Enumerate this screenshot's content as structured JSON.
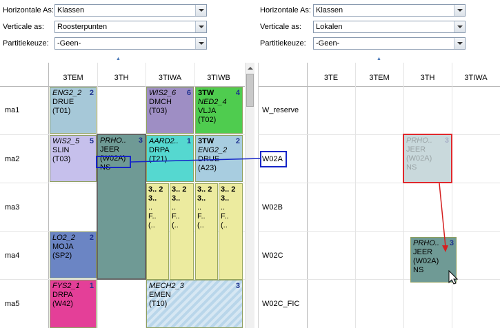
{
  "left_form": {
    "horizontal_label": "Horizontale As:",
    "horizontal_value": "Klassen",
    "vertical_label": "Verticale as:",
    "vertical_value": "Roosterpunten",
    "partition_label": "Partitiekeuze:",
    "partition_value": "-Geen-"
  },
  "right_form": {
    "horizontal_label": "Horizontale As:",
    "horizontal_value": "Klassen",
    "vertical_label": "Verticale as:",
    "vertical_value": "Lokalen",
    "partition_label": "Partitiekeuze:",
    "partition_value": "-Geen-"
  },
  "left_grid": {
    "columns": [
      "3TEM",
      "3TH",
      "3TIWA",
      "3TIWB"
    ],
    "rows": [
      "ma1",
      "ma2",
      "ma3",
      "ma4",
      "ma5"
    ]
  },
  "right_grid": {
    "columns": [
      "3TE",
      "3TEM",
      "3TH",
      "3TIWA"
    ],
    "rooms": [
      "W_reserve",
      "W02A",
      "W02B",
      "W02C",
      "W02C_FIC"
    ]
  },
  "cards": {
    "eng": {
      "subject": "ENG2_2",
      "count": "2",
      "teacher": "DRUE",
      "room": "(T01)"
    },
    "wis6": {
      "subject": "WIS2_6",
      "count": "6",
      "teacher": "DMCH",
      "room": "(T03)"
    },
    "tw": {
      "group": "3TW",
      "count": "4",
      "subject": "NED2_4",
      "teacher": "VLJA",
      "room": "(T02)"
    },
    "wis5": {
      "subject": "WIS2_5",
      "count": "5",
      "teacher": "SLIN",
      "room": "(T03)"
    },
    "prho": {
      "subject": "PRHO..",
      "count": "3",
      "teacher": "JEER",
      "room": "(W02A)",
      "extra": "NS"
    },
    "aard": {
      "subject": "AARD2..",
      "count": "1",
      "teacher": "DRPA",
      "room": "(T21)"
    },
    "tw2": {
      "group": "3TW",
      "count": "2",
      "subject": "ENG2_2",
      "teacher": "DRUE",
      "room": "(A23)"
    },
    "lo": {
      "subject": "LO2_2",
      "count": "2",
      "teacher": "MOJA",
      "room": "(SP2)"
    },
    "fys": {
      "subject": "FYS2_1",
      "count": "1",
      "teacher": "DRPA",
      "room": "(W42)"
    },
    "mech": {
      "subject": "MECH2_3",
      "count": "3",
      "teacher": "EMEN",
      "room": "(T10)"
    },
    "mini": {
      "top": "3..",
      "num": "2",
      "dots": "..",
      "f": "F..",
      "paren": "(.."
    },
    "ghost": {
      "subject": "PRHO..",
      "count": "3",
      "teacher": "JEER",
      "room": "(W02A)",
      "extra": "NS"
    },
    "target": {
      "subject": "PRHO..",
      "count": "3",
      "teacher": "JEER",
      "room": "(W02A)",
      "extra": "NS"
    }
  },
  "highlight": {
    "source": "(W02A)",
    "dest": "W02A"
  }
}
